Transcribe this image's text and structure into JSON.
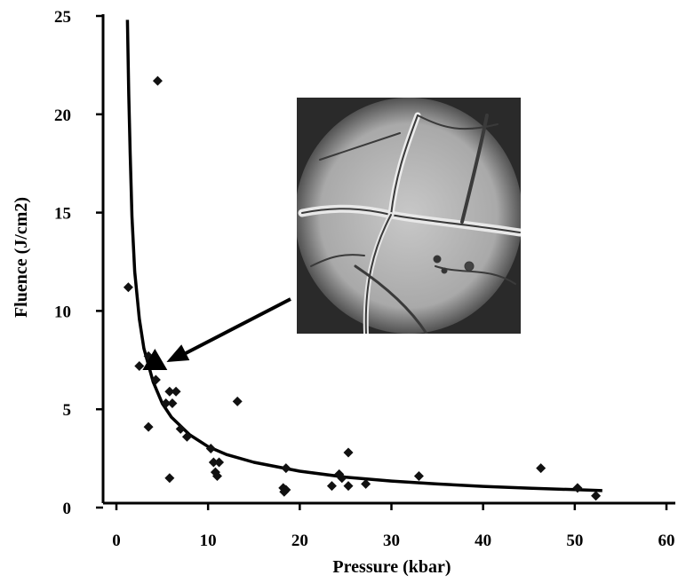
{
  "chart_data": {
    "type": "scatter",
    "title": "",
    "xlabel": "Pressure (kbar)",
    "ylabel": "Fluence (J/cm2)",
    "xlim": [
      0,
      60
    ],
    "ylim": [
      0,
      25
    ],
    "xticks": [
      "0",
      "10",
      "20",
      "30",
      "40",
      "50",
      "60"
    ],
    "yticks": [
      "0",
      "5",
      "10",
      "15",
      "20",
      "25"
    ],
    "grid": false,
    "legend": "none",
    "series": [
      {
        "marker": "diamond",
        "points": [
          [
            4.5,
            21.7
          ],
          [
            1.3,
            11.2
          ],
          [
            3.5,
            7.7
          ],
          [
            2.5,
            7.2
          ],
          [
            4.3,
            6.5
          ],
          [
            5.8,
            5.9
          ],
          [
            6.5,
            5.9
          ],
          [
            5.4,
            5.3
          ],
          [
            6.1,
            5.3
          ],
          [
            13.2,
            5.4
          ],
          [
            3.5,
            4.1
          ],
          [
            7.0,
            4.0
          ],
          [
            7.7,
            3.6
          ],
          [
            10.3,
            3.0
          ],
          [
            10.6,
            2.3
          ],
          [
            11.2,
            2.3
          ],
          [
            10.8,
            1.8
          ],
          [
            11.0,
            1.6
          ],
          [
            5.8,
            1.5
          ],
          [
            18.5,
            2.0
          ],
          [
            18.2,
            1.0
          ],
          [
            18.5,
            0.9
          ],
          [
            18.3,
            0.8
          ],
          [
            23.5,
            1.1
          ],
          [
            24.3,
            1.7
          ],
          [
            24.6,
            1.5
          ],
          [
            25.3,
            1.1
          ],
          [
            25.3,
            2.8
          ],
          [
            27.2,
            1.2
          ],
          [
            33.0,
            1.6
          ],
          [
            46.3,
            2.0
          ],
          [
            50.3,
            1.0
          ],
          [
            52.3,
            0.6
          ]
        ]
      },
      {
        "type": "line",
        "fit": "power",
        "x": [
          1.2,
          1.35,
          1.5,
          1.7,
          2.0,
          2.5,
          3,
          4,
          5,
          6,
          8,
          10,
          12,
          15,
          20,
          25,
          30,
          35,
          40,
          45,
          50,
          53
        ],
        "y": [
          24.8,
          21.0,
          18.0,
          14.8,
          12.0,
          9.6,
          8.1,
          6.4,
          5.3,
          4.6,
          3.7,
          3.1,
          2.7,
          2.3,
          1.85,
          1.55,
          1.35,
          1.2,
          1.08,
          0.99,
          0.91,
          0.86
        ]
      }
    ],
    "annotations": [
      {
        "type": "triangle-marker",
        "x": 4.2,
        "y": 7.4
      },
      {
        "type": "arrow",
        "to_x": 4.3,
        "to_y": 7.4
      },
      {
        "type": "inset-image",
        "description": "microscope photograph"
      }
    ]
  }
}
